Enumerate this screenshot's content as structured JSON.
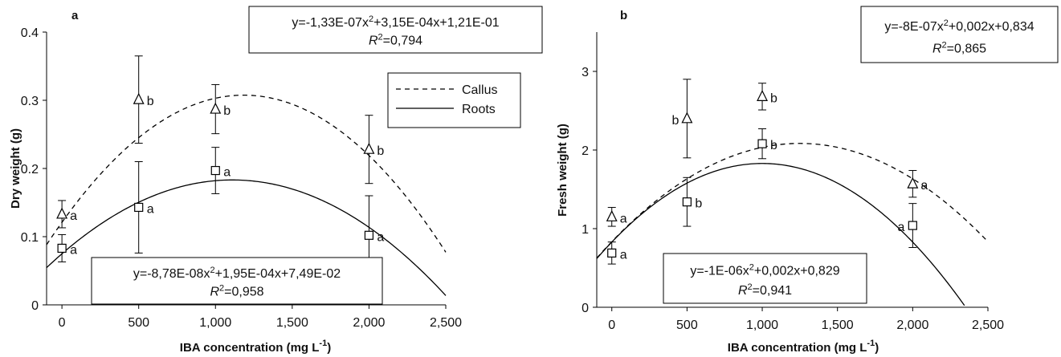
{
  "chart_data": [
    {
      "type": "scatter",
      "panel_label": "a",
      "xlabel": "IBA concentration (mg L",
      "xlabel_sup": "-1",
      "xlabel_end": ")",
      "ylabel": "Dry weight (g)",
      "xlim": [
        -100,
        2500
      ],
      "ylim": [
        0,
        0.4
      ],
      "x_ticks": [
        0,
        500,
        1000,
        1500,
        2000,
        2500
      ],
      "x_tick_labels": [
        "0",
        "500",
        "1,000",
        "1,500",
        "2,000",
        "2,500"
      ],
      "y_ticks": [
        0,
        0.1,
        0.2,
        0.3,
        0.4
      ],
      "y_tick_labels": [
        "0",
        "0.1",
        "0.2",
        "0.3",
        "0.4"
      ],
      "grid": false,
      "legend": {
        "position": "top-right",
        "entries": [
          {
            "label": "Callus",
            "style": "dashed"
          },
          {
            "label": "Roots",
            "style": "solid"
          }
        ]
      },
      "series": [
        {
          "name": "Callus",
          "marker": "triangle",
          "line_style": "dashed",
          "x": [
            0,
            500,
            1000,
            2000
          ],
          "y": [
            0.133,
            0.301,
            0.287,
            0.228
          ],
          "err": [
            0.02,
            0.064,
            0.036,
            0.05
          ],
          "letters": [
            "a",
            "b",
            "b",
            "b"
          ],
          "letter_side": [
            "right",
            "right",
            "right",
            "right"
          ],
          "fit": {
            "a": -1.33e-07,
            "b": 0.000315,
            "c": 0.121
          },
          "equation": {
            "text": "y=-1,33E-07x",
            "exp": "2",
            "rest": "+3,15E-04x+1,21E-01",
            "r2_label": "R",
            "r2_exp": "2",
            "r2_value": "=0,794"
          }
        },
        {
          "name": "Roots",
          "marker": "square",
          "line_style": "solid",
          "x": [
            0,
            500,
            1000,
            2000
          ],
          "y": [
            0.083,
            0.143,
            0.197,
            0.102
          ],
          "err": [
            0.02,
            0.067,
            0.034,
            0.058
          ],
          "letters": [
            "a",
            "a",
            "a",
            "a"
          ],
          "letter_side": [
            "right",
            "right",
            "right",
            "right"
          ],
          "fit": {
            "a": -8.78e-08,
            "b": 0.000195,
            "c": 0.0749
          },
          "equation": {
            "text": "y=-8,78E-08x",
            "exp": "2",
            "rest": "+1,95E-04x+7,49E-02",
            "r2_label": "R",
            "r2_exp": "2",
            "r2_value": "=0,958"
          }
        }
      ]
    },
    {
      "type": "scatter",
      "panel_label": "b",
      "xlabel": "IBA concentration (mg L",
      "xlabel_sup": "-1",
      "xlabel_end": ")",
      "ylabel": "Fresh weight (g)",
      "xlim": [
        -100,
        2500
      ],
      "ylim": [
        0,
        3.5
      ],
      "x_ticks": [
        0,
        500,
        1000,
        1500,
        2000,
        2500
      ],
      "x_tick_labels": [
        "0",
        "500",
        "1,000",
        "1,500",
        "2,000",
        "2,500"
      ],
      "y_ticks": [
        0,
        1,
        2,
        3
      ],
      "y_tick_labels": [
        "0",
        "1",
        "2",
        "3"
      ],
      "grid": false,
      "series": [
        {
          "name": "Callus",
          "marker": "triangle",
          "line_style": "dashed",
          "x": [
            0,
            500,
            1000,
            2000
          ],
          "y": [
            1.15,
            2.4,
            2.68,
            1.57
          ],
          "err": [
            0.12,
            0.5,
            0.17,
            0.17
          ],
          "letters": [
            "a",
            "b",
            "b",
            "a"
          ],
          "letter_side": [
            "right",
            "left",
            "right",
            "right"
          ],
          "fit": {
            "a": -8e-07,
            "b": 0.002,
            "c": 0.834
          },
          "equation": {
            "text": "y=-8E-07x",
            "exp": "2",
            "rest": "+0,002x+0,834",
            "r2_label": "R",
            "r2_exp": "2",
            "r2_value": "=0,865"
          }
        },
        {
          "name": "Roots",
          "marker": "square",
          "line_style": "solid",
          "x": [
            0,
            500,
            1000,
            2000
          ],
          "y": [
            0.69,
            1.34,
            2.08,
            1.04
          ],
          "err": [
            0.14,
            0.31,
            0.19,
            0.28
          ],
          "letters": [
            "a",
            "b",
            "b",
            "a"
          ],
          "letter_side": [
            "right",
            "right",
            "right",
            "left"
          ],
          "fit": {
            "a": -1e-06,
            "b": 0.002,
            "c": 0.829
          },
          "equation": {
            "text": "y=-1E-06x",
            "exp": "2",
            "rest": "+0,002x+0,829",
            "r2_label": "R",
            "r2_exp": "2",
            "r2_value": "=0,941"
          }
        }
      ]
    }
  ]
}
